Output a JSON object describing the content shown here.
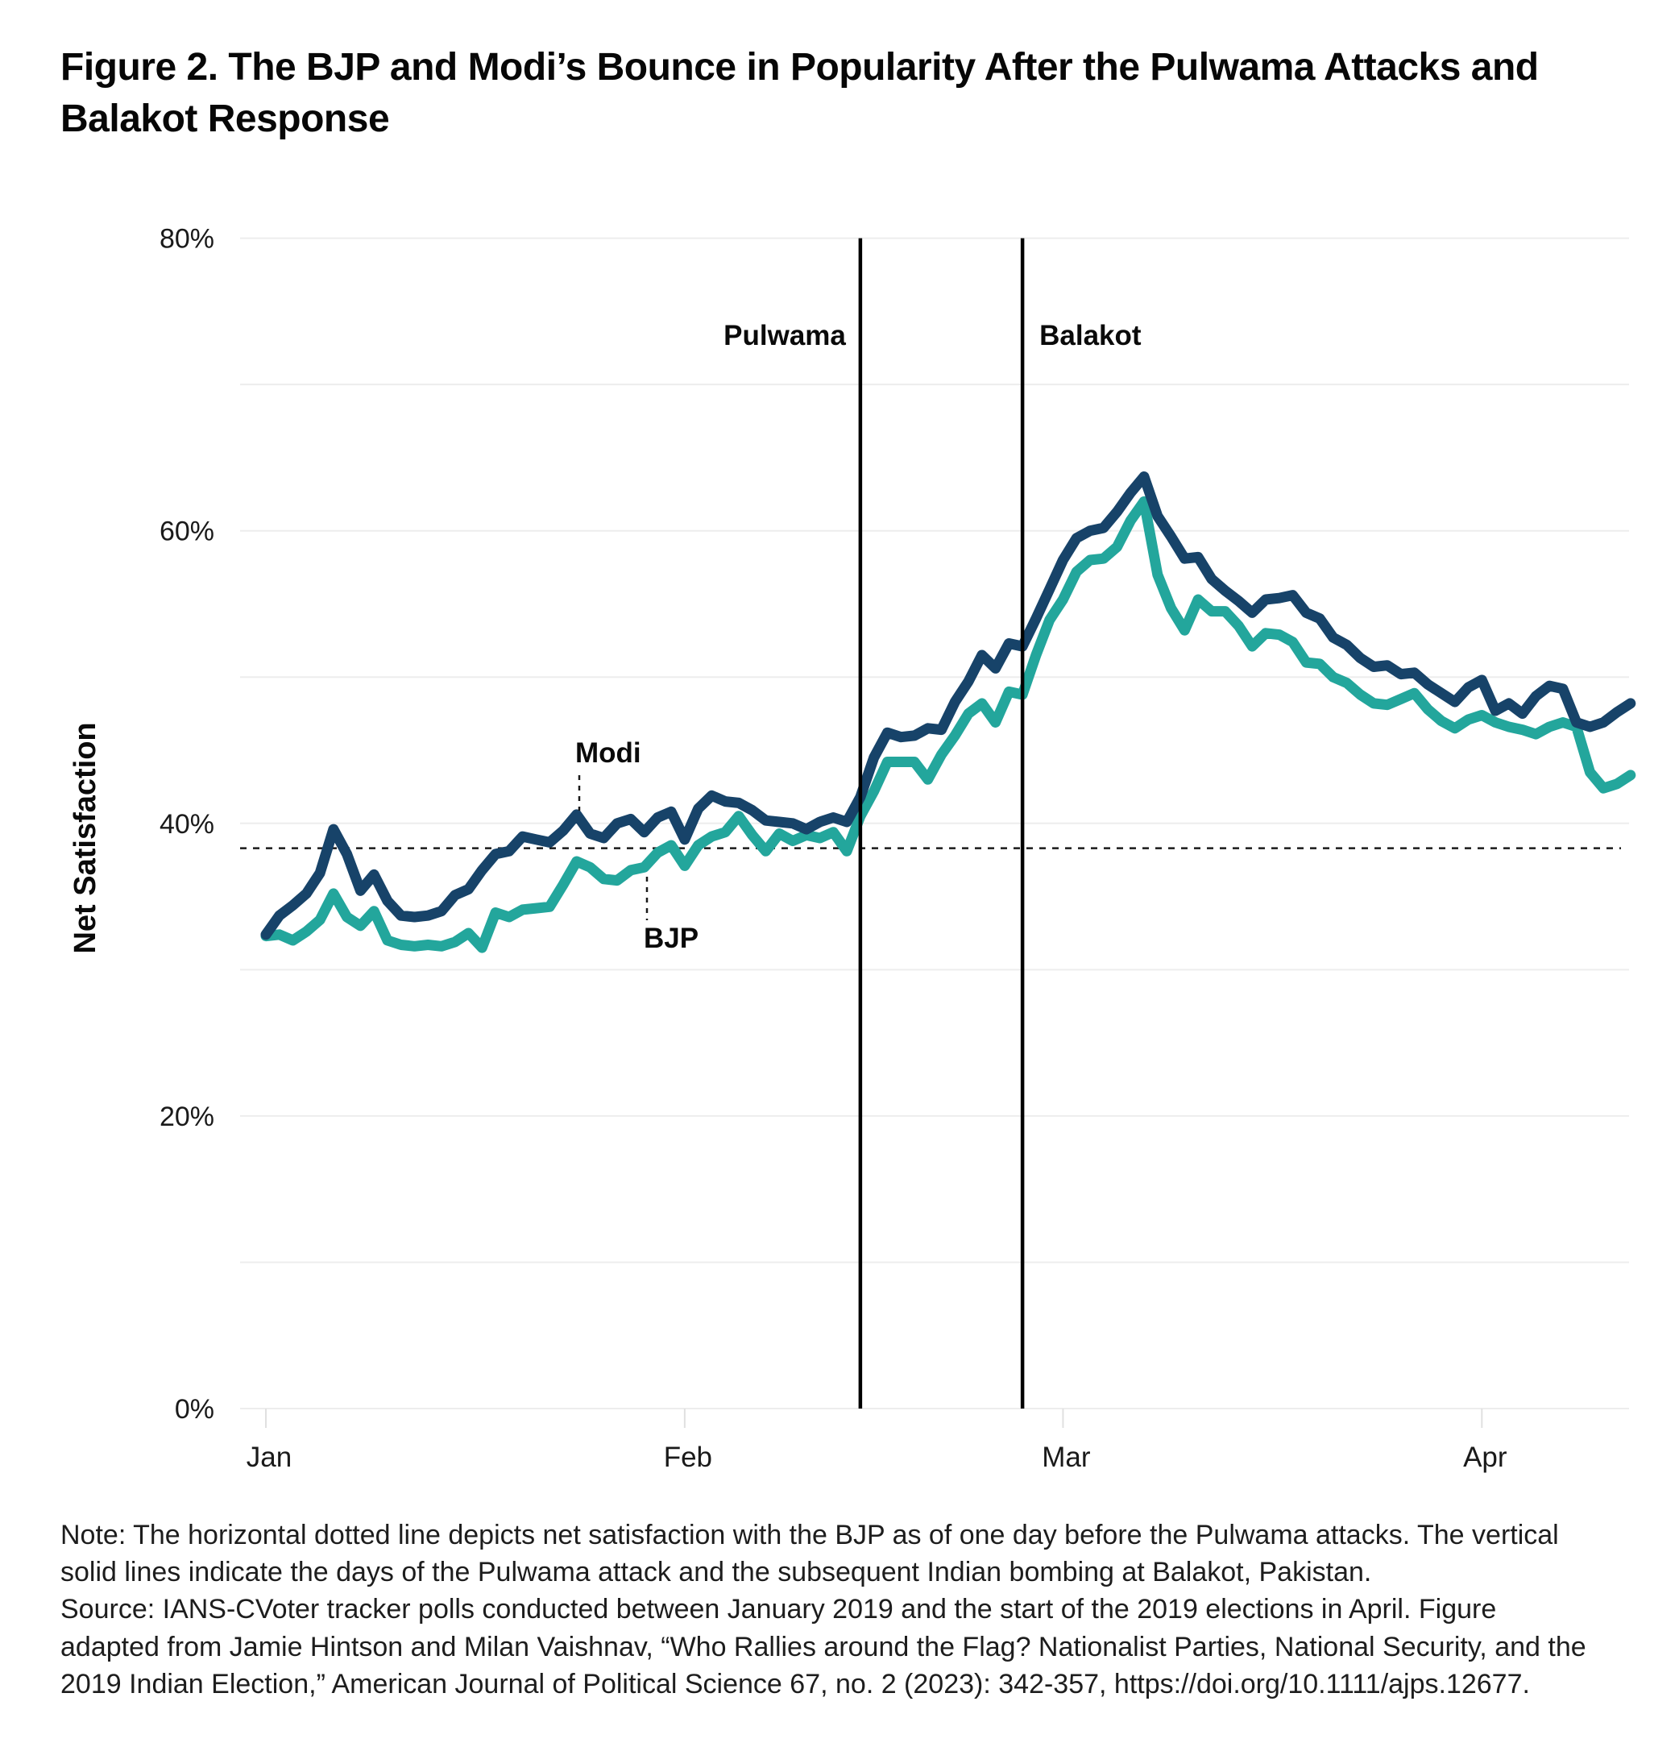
{
  "title": "Figure 2. The BJP and Modi’s Bounce in Popularity After the Pulwama Attacks and Balakot Response",
  "notes": {
    "note_line": "Note: The horizontal dotted line depicts net satisfaction with the BJP as of one day before the Pulwama attacks. The vertical solid lines indicate the days of the Pulwama attack and the subsequent Indian bombing at Balakot, Pakistan.",
    "source_line": "Source: IANS-CVoter tracker polls conducted between January 2019 and the start of the 2019 elections in April. Figure adapted from Jamie Hintson and Milan Vaishnav, “Who Rallies around the Flag? Nationalist Parties, National Security, and the 2019 Indian Election,” American Journal of Political Science 67, no. 2 (2023): 342-357, https://doi.org/10.1111/ajps.12677."
  },
  "chart_data": {
    "type": "line",
    "title": "The BJP and Modi's Bounce in Popularity After the Pulwama Attacks and Balakot Response",
    "ylabel": "Net Satisfaction",
    "xlabel": "",
    "ylim": [
      0,
      80
    ],
    "gridline_step": 10,
    "y_label_step": 20,
    "y_tick_suffix": "%",
    "grid": "horizontal-light",
    "legend_position": "inline-annotations",
    "x_tick_labels": [
      "Jan",
      "Feb",
      "Mar",
      "Apr"
    ],
    "month_tick_days": [
      0,
      31,
      59,
      90
    ],
    "x_unit": "days from Jan 1, 2019 (tracker poll, daily)",
    "series": [
      {
        "name": "Modi",
        "color": "#174369",
        "values": [
          32.4,
          33.7,
          34.4,
          35.2,
          36.6,
          39.6,
          37.9,
          35.4,
          36.5,
          34.7,
          33.7,
          33.6,
          33.7,
          34.0,
          35.1,
          35.5,
          36.8,
          37.9,
          38.1,
          39.1,
          38.9,
          38.7,
          39.5,
          40.6,
          39.3,
          39.0,
          40.0,
          40.3,
          39.4,
          40.4,
          40.8,
          38.9,
          41.0,
          41.9,
          41.5,
          41.4,
          40.9,
          40.2,
          40.1,
          40.0,
          39.6,
          40.1,
          40.4,
          40.1,
          41.8,
          44.5,
          46.2,
          45.9,
          46.0,
          46.5,
          46.4,
          48.3,
          49.7,
          51.5,
          50.6,
          52.3,
          52.1,
          54.0,
          56.0,
          58.0,
          59.5,
          60.0,
          60.2,
          61.3,
          62.6,
          63.7,
          61.0,
          59.6,
          58.1,
          58.2,
          56.7,
          55.9,
          55.2,
          54.4,
          55.3,
          55.4,
          55.6,
          54.4,
          54.0,
          52.7,
          52.2,
          51.3,
          50.7,
          50.8,
          50.2,
          50.3,
          49.5,
          48.9,
          48.3,
          49.3,
          49.8,
          47.7,
          48.2,
          47.5,
          48.7,
          49.4,
          49.2,
          46.9,
          46.6,
          46.9,
          47.6,
          48.2
        ]
      },
      {
        "name": "BJP",
        "color": "#23a69c",
        "values": [
          32.3,
          32.4,
          32.0,
          32.6,
          33.4,
          35.2,
          33.6,
          33.0,
          34.0,
          32.0,
          31.7,
          31.6,
          31.7,
          31.6,
          31.9,
          32.5,
          31.5,
          33.9,
          33.6,
          34.1,
          34.2,
          34.3,
          35.8,
          37.4,
          37.0,
          36.2,
          36.1,
          36.8,
          37.0,
          38.0,
          38.5,
          37.1,
          38.5,
          39.1,
          39.4,
          40.5,
          39.2,
          38.1,
          39.3,
          38.8,
          39.2,
          39.0,
          39.4,
          38.1,
          40.5,
          42.2,
          44.2,
          44.2,
          44.2,
          43.0,
          44.7,
          46.0,
          47.5,
          48.2,
          46.9,
          49.0,
          48.8,
          51.5,
          53.9,
          55.3,
          57.2,
          58.0,
          58.1,
          58.9,
          60.7,
          62.0,
          57.0,
          54.7,
          53.2,
          55.3,
          54.5,
          54.5,
          53.5,
          52.1,
          53.0,
          52.9,
          52.4,
          51.0,
          50.9,
          50.0,
          49.6,
          48.8,
          48.2,
          48.1,
          48.5,
          48.9,
          47.8,
          47.0,
          46.5,
          47.1,
          47.4,
          46.9,
          46.6,
          46.4,
          46.1,
          46.6,
          46.9,
          46.6,
          43.5,
          42.4,
          42.7,
          43.3
        ]
      }
    ],
    "events": [
      {
        "label": "Pulwama",
        "day": 44
      },
      {
        "label": "Balakot",
        "day": 56
      }
    ],
    "reference_line": {
      "value": 38.3,
      "meaning": "Net satisfaction with the BJP as of one day before the Pulwama attacks"
    },
    "colors": {
      "modi_line": "#174369",
      "bjp_line": "#23a69c",
      "gridline": "#ededed",
      "axis_tick": "#e0e0e0",
      "event_line": "#000000",
      "reference_line": "#1a1a1a",
      "text": "#1a1a1a"
    }
  }
}
